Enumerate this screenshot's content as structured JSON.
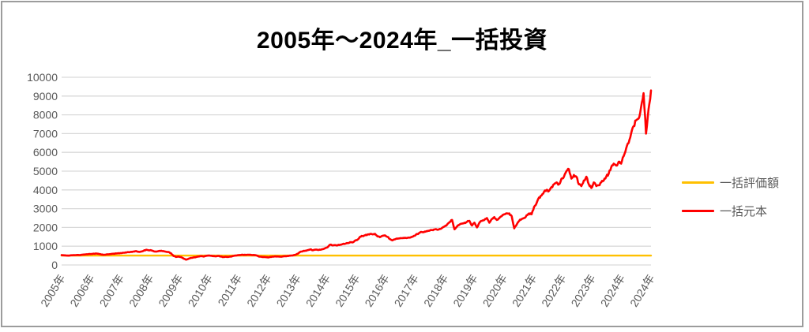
{
  "title": "2005年～2024年_一括投資",
  "legend": [
    {
      "label": "一括評価額",
      "color": "#FFC000"
    },
    {
      "label": "一括元本",
      "color": "#FF0000"
    }
  ],
  "colors": {
    "axis_text": "#595959",
    "gridline": "#D9D9D9",
    "frame_border": "#9C9C9C",
    "title_text": "#000000"
  },
  "chart_data": {
    "type": "line",
    "title": "2005年～2024年_一括投資",
    "xlabel": "",
    "ylabel": "",
    "x_period": "monthly, 2005-01 to 2024-10",
    "x_tick_labels": [
      "2005年",
      "2006年",
      "2007年",
      "2008年",
      "2009年",
      "2010年",
      "2011年",
      "2012年",
      "2013年",
      "2014年",
      "2015年",
      "2016年",
      "2017年",
      "2018年",
      "2019年",
      "2020年",
      "2021年",
      "2022年",
      "2023年",
      "2024年",
      "2024年"
    ],
    "ylim": [
      0,
      10000
    ],
    "y_ticks": [
      0,
      1000,
      2000,
      3000,
      4000,
      5000,
      6000,
      7000,
      8000,
      9000,
      10000
    ],
    "grid": "horizontal",
    "legend_position": "right",
    "series": [
      {
        "name": "一括評価額",
        "color": "#FFC000",
        "style": "flat",
        "constant_value": 500
      },
      {
        "name": "一括元本",
        "color": "#FF0000",
        "style": "jagged",
        "monthly_values": [
          525,
          510,
          500,
          505,
          515,
          520,
          530,
          525,
          545,
          555,
          570,
          585,
          590,
          600,
          610,
          590,
          555,
          545,
          560,
          570,
          585,
          600,
          615,
          625,
          630,
          650,
          665,
          680,
          700,
          720,
          740,
          700,
          720,
          760,
          810,
          780,
          780,
          730,
          710,
          740,
          760,
          740,
          700,
          690,
          620,
          480,
          430,
          450,
          420,
          350,
          280,
          330,
          380,
          400,
          420,
          450,
          470,
          450,
          480,
          500,
          490,
          470,
          460,
          480,
          450,
          420,
          440,
          430,
          450,
          480,
          500,
          520,
          530,
          540,
          533,
          545,
          540,
          530,
          520,
          470,
          440,
          430,
          420,
          400,
          430,
          440,
          460,
          450,
          440,
          455,
          470,
          480,
          495,
          510,
          540,
          600,
          700,
          730,
          760,
          790,
          830,
          780,
          820,
          800,
          810,
          840,
          900,
          950,
          1080,
          1040,
          1060,
          1050,
          1080,
          1110,
          1130,
          1160,
          1220,
          1200,
          1300,
          1350,
          1500,
          1540,
          1580,
          1620,
          1650,
          1630,
          1660,
          1520,
          1480,
          1550,
          1580,
          1500,
          1380,
          1310,
          1360,
          1400,
          1420,
          1430,
          1450,
          1440,
          1460,
          1500,
          1560,
          1650,
          1720,
          1750,
          1780,
          1800,
          1830,
          1860,
          1890,
          1880,
          1920,
          1980,
          2050,
          2150,
          2280,
          2400,
          1900,
          2050,
          2150,
          2200,
          2250,
          2300,
          2350,
          2100,
          2250,
          2000,
          2250,
          2350,
          2400,
          2500,
          2250,
          2450,
          2550,
          2400,
          2500,
          2600,
          2700,
          2750,
          2750,
          2600,
          1950,
          2150,
          2350,
          2450,
          2500,
          2650,
          2750,
          2700,
          3100,
          3300,
          3600,
          3700,
          3900,
          4000,
          3950,
          4150,
          4300,
          4400,
          4300,
          4600,
          4700,
          5000,
          5100,
          4600,
          4800,
          4700,
          4300,
          4200,
          4500,
          4700,
          4300,
          4100,
          4400,
          4200,
          4250,
          4400,
          4500,
          4700,
          4870,
          5200,
          5400,
          5300,
          5500,
          5400,
          5800,
          6200,
          6500,
          7000,
          7400,
          7700,
          7800,
          8400,
          9150,
          7000,
          8300,
          9300
        ]
      }
    ]
  }
}
